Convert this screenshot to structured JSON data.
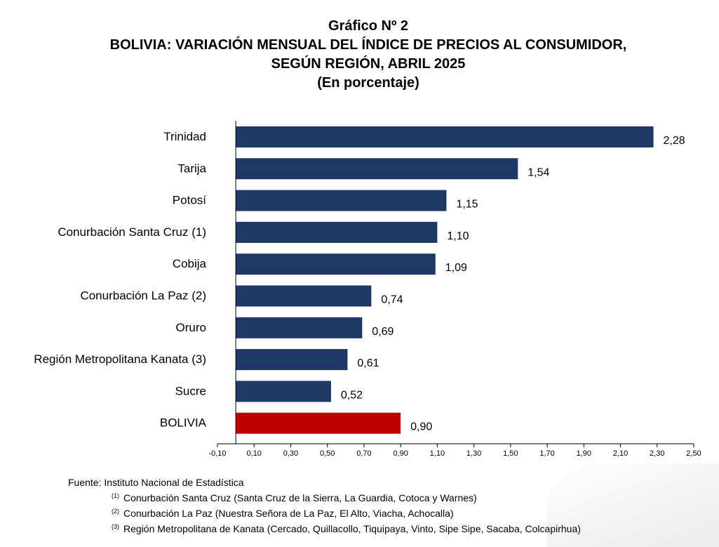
{
  "header": {
    "line1": "Gráfico Nº 2",
    "line2": "BOLIVIA: VARIACIÓN MENSUAL DEL ÍNDICE DE PRECIOS AL CONSUMIDOR,",
    "line3": "SEGÚN REGIÓN, ABRIL 2025",
    "line4": "(En porcentaje)"
  },
  "chart_data": {
    "type": "bar",
    "orientation": "horizontal",
    "title": "BOLIVIA: VARIACIÓN MENSUAL DEL ÍNDICE DE PRECIOS AL CONSUMIDOR, SEGÚN REGIÓN, ABRIL 2025",
    "subtitle": "(En porcentaje)",
    "categories": [
      "Trinidad",
      "Tarija",
      "Potosí",
      "Conurbación Santa Cruz (1)",
      "Cobija",
      "Conurbación La Paz (2)",
      "Oruro",
      "Región Metropolitana Kanata (3)",
      "Sucre",
      "BOLIVIA"
    ],
    "values": [
      2.28,
      1.54,
      1.15,
      1.1,
      1.09,
      0.74,
      0.69,
      0.61,
      0.52,
      0.9
    ],
    "value_labels": [
      "2,28",
      "1,54",
      "1,15",
      "1,10",
      "1,09",
      "0,74",
      "0,69",
      "0,61",
      "0,52",
      "0,90"
    ],
    "xlim": [
      -0.1,
      2.5
    ],
    "xticks": [
      "-0,10",
      "0,10",
      "0,30",
      "0,50",
      "0,70",
      "0,90",
      "1,10",
      "1,30",
      "1,50",
      "1,70",
      "1,90",
      "2,10",
      "2,30",
      "2,50"
    ],
    "grid": false,
    "colors": {
      "region": "#1f3864",
      "national": "#c00000",
      "axis": "#000000"
    }
  },
  "notes": {
    "source": "Fuente: Instituto Nacional de Estadística",
    "footnotes": [
      {
        "mark": "(1)",
        "text": "Conurbación Santa Cruz (Santa Cruz de la Sierra, La Guardia, Cotoca y Warnes)"
      },
      {
        "mark": "(2)",
        "text": "Conurbación La Paz (Nuestra Señora de La Paz, El Alto, Viacha, Achocalla)"
      },
      {
        "mark": "(3)",
        "text": "Región Metropolitana de Kanata (Cercado, Quillacollo, Tiquipaya, Vinto, Sipe Sipe, Sacaba, Colcapirhua)"
      }
    ]
  }
}
